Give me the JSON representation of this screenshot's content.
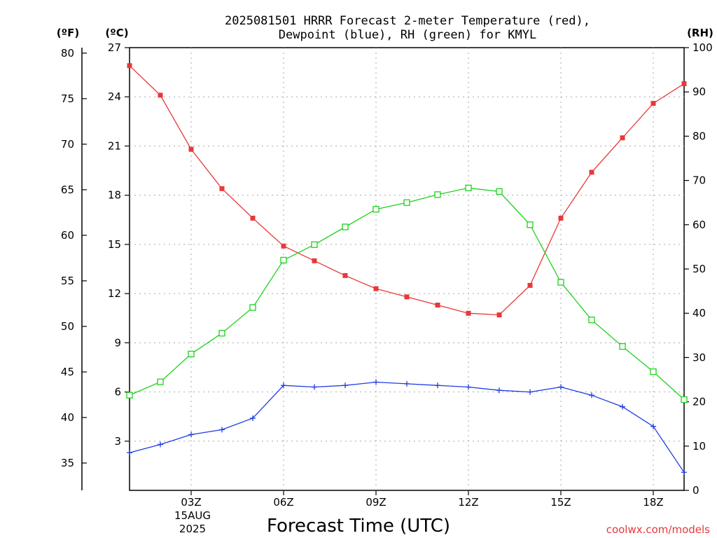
{
  "chart_data": {
    "type": "line",
    "title_lines": [
      "2025081501 HRRR Forecast 2-meter Temperature (red),",
      "Dewpoint (blue), RH (green) for KMYL"
    ],
    "xlabel": "Forecast Time (UTC)",
    "credit": "coolwx.com/models",
    "date_label": [
      "15AUG",
      "2025"
    ],
    "units": {
      "fahrenheit": "(ºF)",
      "celsius": "(ºC)",
      "rh": "(RH)"
    },
    "x_hours": [
      1,
      2,
      3,
      4,
      5,
      6,
      7,
      8,
      9,
      10,
      11,
      12,
      13,
      14,
      15,
      16,
      17,
      18,
      19
    ],
    "x_range": [
      1,
      19
    ],
    "x_ticks": [
      {
        "hour": 3,
        "label": "03Z"
      },
      {
        "hour": 6,
        "label": "06Z"
      },
      {
        "hour": 9,
        "label": "09Z"
      },
      {
        "hour": 12,
        "label": "12Z"
      },
      {
        "hour": 15,
        "label": "15Z"
      },
      {
        "hour": 18,
        "label": "18Z"
      }
    ],
    "celsius_axis": {
      "range": [
        0,
        27
      ],
      "ticks": [
        "3",
        "6",
        "9",
        "12",
        "15",
        "18",
        "21",
        "24",
        "27"
      ]
    },
    "fahrenheit_axis": {
      "range": [
        32,
        80.6
      ],
      "ticks": [
        "35",
        "40",
        "45",
        "50",
        "55",
        "60",
        "65",
        "70",
        "75",
        "80"
      ]
    },
    "rh_axis": {
      "range": [
        0,
        100
      ],
      "ticks": [
        "0",
        "10",
        "20",
        "30",
        "40",
        "50",
        "60",
        "70",
        "80",
        "90",
        "100"
      ]
    },
    "grid": true,
    "series": [
      {
        "name": "Temperature",
        "axis": "celsius",
        "color": "#e8383b",
        "marker": "filled-square",
        "values": [
          25.9,
          24.1,
          20.8,
          18.4,
          16.6,
          14.9,
          14.0,
          13.1,
          12.3,
          11.8,
          11.3,
          10.8,
          10.7,
          12.5,
          16.6,
          19.4,
          21.5,
          23.6,
          24.8
        ]
      },
      {
        "name": "Dewpoint",
        "axis": "celsius",
        "color": "#1f3ce0",
        "marker": "plus",
        "values": [
          2.3,
          2.8,
          3.4,
          3.7,
          4.4,
          6.4,
          6.3,
          6.4,
          6.6,
          6.5,
          6.4,
          6.3,
          6.1,
          6.0,
          6.3,
          5.8,
          5.1,
          3.9,
          1.1
        ]
      },
      {
        "name": "RH",
        "axis": "rh",
        "color": "#1ed11e",
        "marker": "open-square",
        "values": [
          21.5,
          24.5,
          30.8,
          35.5,
          41.3,
          52.0,
          55.5,
          59.5,
          63.5,
          65.0,
          66.8,
          68.3,
          67.5,
          60.0,
          47.0,
          38.5,
          32.5,
          26.8,
          20.5
        ]
      }
    ]
  }
}
